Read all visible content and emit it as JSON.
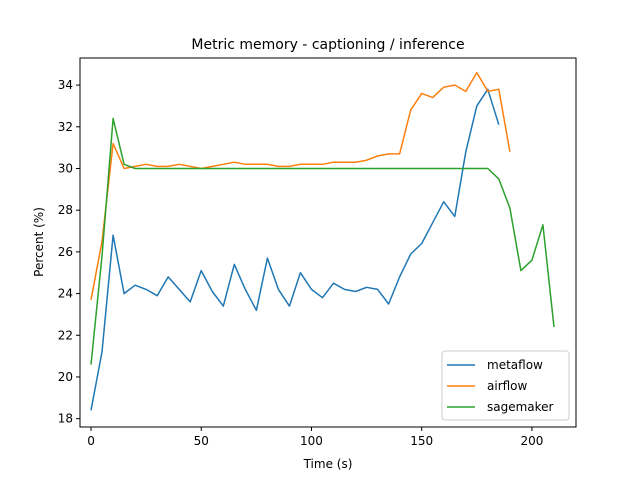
{
  "chart_data": {
    "type": "line",
    "title": "Metric memory - captioning / inference",
    "xlabel": "Time (s)",
    "ylabel": "Percent (%)",
    "xlim": [
      -5,
      220
    ],
    "ylim": [
      17.6,
      35.3
    ],
    "xticks": [
      0,
      50,
      100,
      150,
      200
    ],
    "yticks": [
      18,
      20,
      22,
      24,
      26,
      28,
      30,
      32,
      34
    ],
    "grid": false,
    "legend_position": "lower-right",
    "series": [
      {
        "name": "metaflow",
        "color": "#1f77b4",
        "x": [
          0,
          5,
          10,
          15,
          20,
          25,
          30,
          35,
          40,
          45,
          50,
          55,
          60,
          65,
          70,
          75,
          80,
          85,
          90,
          95,
          100,
          105,
          110,
          115,
          120,
          125,
          130,
          135,
          140,
          145,
          150,
          155,
          160,
          165,
          170,
          175,
          180,
          185
        ],
        "y": [
          18.4,
          21.2,
          26.8,
          24.0,
          24.4,
          24.2,
          23.9,
          24.8,
          24.2,
          23.6,
          25.1,
          24.1,
          23.4,
          25.4,
          24.2,
          23.2,
          25.7,
          24.2,
          23.4,
          25.0,
          24.2,
          23.8,
          24.5,
          24.2,
          24.1,
          24.3,
          24.2,
          23.5,
          24.8,
          25.9,
          26.4,
          27.4,
          28.4,
          27.7,
          30.8,
          33.0,
          33.8,
          32.1
        ]
      },
      {
        "name": "airflow",
        "color": "#ff7f0e",
        "x": [
          0,
          5,
          10,
          15,
          20,
          25,
          30,
          35,
          40,
          45,
          50,
          55,
          60,
          65,
          70,
          75,
          80,
          85,
          90,
          95,
          100,
          105,
          110,
          115,
          120,
          125,
          130,
          135,
          140,
          145,
          150,
          155,
          160,
          165,
          170,
          175,
          180,
          185,
          190
        ],
        "y": [
          23.7,
          26.5,
          31.2,
          30.0,
          30.1,
          30.2,
          30.1,
          30.1,
          30.2,
          30.1,
          30.0,
          30.1,
          30.2,
          30.3,
          30.2,
          30.2,
          30.2,
          30.1,
          30.1,
          30.2,
          30.2,
          30.2,
          30.3,
          30.3,
          30.3,
          30.4,
          30.6,
          30.7,
          30.7,
          32.8,
          33.6,
          33.4,
          33.9,
          34.0,
          33.7,
          34.6,
          33.7,
          33.8,
          30.8
        ]
      },
      {
        "name": "sagemaker",
        "color": "#2ca02c",
        "x": [
          0,
          5,
          10,
          15,
          20,
          25,
          30,
          35,
          40,
          45,
          50,
          55,
          60,
          65,
          70,
          75,
          80,
          85,
          90,
          95,
          100,
          105,
          110,
          115,
          120,
          125,
          130,
          135,
          140,
          145,
          150,
          155,
          160,
          165,
          170,
          175,
          180,
          185,
          190,
          195,
          200,
          205,
          210
        ],
        "y": [
          20.6,
          25.8,
          32.4,
          30.2,
          30.0,
          30.0,
          30.0,
          30.0,
          30.0,
          30.0,
          30.0,
          30.0,
          30.0,
          30.0,
          30.0,
          30.0,
          30.0,
          30.0,
          30.0,
          30.0,
          30.0,
          30.0,
          30.0,
          30.0,
          30.0,
          30.0,
          30.0,
          30.0,
          30.0,
          30.0,
          30.0,
          30.0,
          30.0,
          30.0,
          30.0,
          30.0,
          30.0,
          29.5,
          28.1,
          25.1,
          25.6,
          27.3,
          22.4
        ]
      }
    ]
  }
}
